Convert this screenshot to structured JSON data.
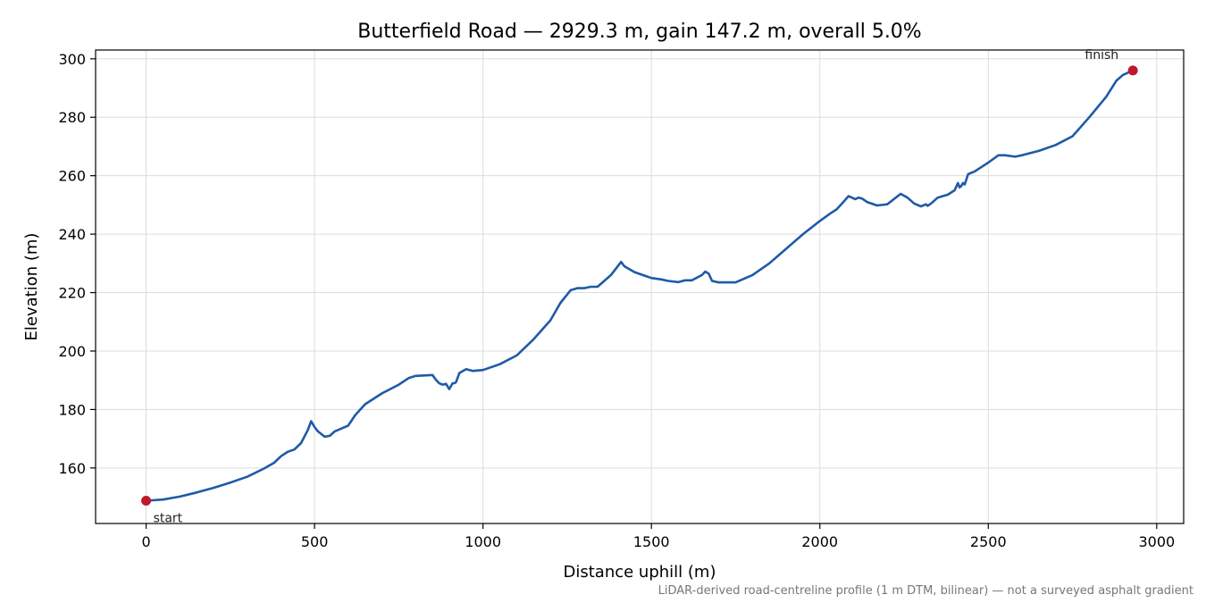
{
  "chart_data": {
    "type": "line",
    "title": "Butterfield Road — 2929.3 m, gain 147.2 m, overall 5.0%",
    "xlabel": "Distance uphill (m)",
    "ylabel": "Elevation (m)",
    "xlim": [
      -150,
      3080
    ],
    "ylim": [
      141,
      303
    ],
    "xticks": [
      0,
      500,
      1000,
      1500,
      2000,
      2500,
      3000
    ],
    "yticks": [
      160,
      180,
      200,
      220,
      240,
      260,
      280,
      300
    ],
    "grid": true,
    "line_color": "#1f5aa6",
    "marker_color": "#c0182b",
    "series": [
      {
        "x": [
          0,
          50,
          100,
          150,
          200,
          250,
          300,
          350,
          380,
          400,
          420,
          440,
          460,
          480,
          490,
          500,
          510,
          530,
          545,
          560,
          600,
          620,
          650,
          700,
          750,
          780,
          800,
          850,
          860,
          870,
          880,
          890,
          900,
          910,
          915,
          920,
          930,
          950,
          970,
          1000,
          1050,
          1100,
          1150,
          1200,
          1230,
          1260,
          1280,
          1300,
          1320,
          1340,
          1380,
          1400,
          1410,
          1420,
          1450,
          1480,
          1500,
          1530,
          1550,
          1580,
          1600,
          1620,
          1650,
          1660,
          1670,
          1680,
          1700,
          1750,
          1800,
          1850,
          1900,
          1950,
          2000,
          2030,
          2050,
          2070,
          2085,
          2095,
          2105,
          2115,
          2125,
          2140,
          2170,
          2200,
          2240,
          2260,
          2280,
          2300,
          2315,
          2320,
          2330,
          2350,
          2380,
          2400,
          2410,
          2415,
          2420,
          2425,
          2430,
          2440,
          2450,
          2460,
          2500,
          2530,
          2550,
          2580,
          2600,
          2650,
          2700,
          2750,
          2800,
          2850,
          2880,
          2900,
          2929.3
        ],
        "y": [
          148.8,
          149.2,
          150.2,
          151.6,
          153.2,
          155,
          157,
          159.8,
          161.8,
          164,
          165.5,
          166.3,
          168.5,
          173,
          176,
          174,
          172.5,
          170.7,
          171,
          172.5,
          174.5,
          178,
          181.8,
          185.5,
          188.5,
          190.8,
          191.5,
          191.8,
          190.2,
          189,
          188.5,
          188.8,
          187,
          189,
          189,
          189.4,
          192.5,
          193.8,
          193.2,
          193.5,
          195.5,
          198.5,
          204,
          210.5,
          216.5,
          220.8,
          221.5,
          221.5,
          222,
          222,
          226,
          229,
          230.5,
          229,
          227,
          225.8,
          225,
          224.5,
          224,
          223.6,
          224.2,
          224.2,
          226,
          227.2,
          226.5,
          224,
          223.5,
          223.5,
          226,
          230,
          235,
          240,
          244.5,
          247,
          248.5,
          251,
          253,
          252.5,
          252,
          252.5,
          252.2,
          251,
          249.8,
          250.2,
          253.8,
          252.5,
          250.5,
          249.5,
          250.2,
          249.7,
          250.5,
          252.5,
          253.5,
          255,
          257.5,
          256,
          256.5,
          257.5,
          257,
          260.5,
          261,
          261.5,
          264.5,
          267,
          267,
          266.5,
          267,
          268.5,
          270.5,
          273.5,
          280,
          287,
          292.5,
          294.5,
          296
        ]
      }
    ],
    "annotations": [
      {
        "text": "start",
        "x": 0,
        "y": 148.8
      },
      {
        "text": "finish",
        "x": 2929.3,
        "y": 296
      }
    ],
    "footnote": "LiDAR-derived road-centreline profile (1 m DTM, bilinear) — not a surveyed asphalt gradient"
  }
}
